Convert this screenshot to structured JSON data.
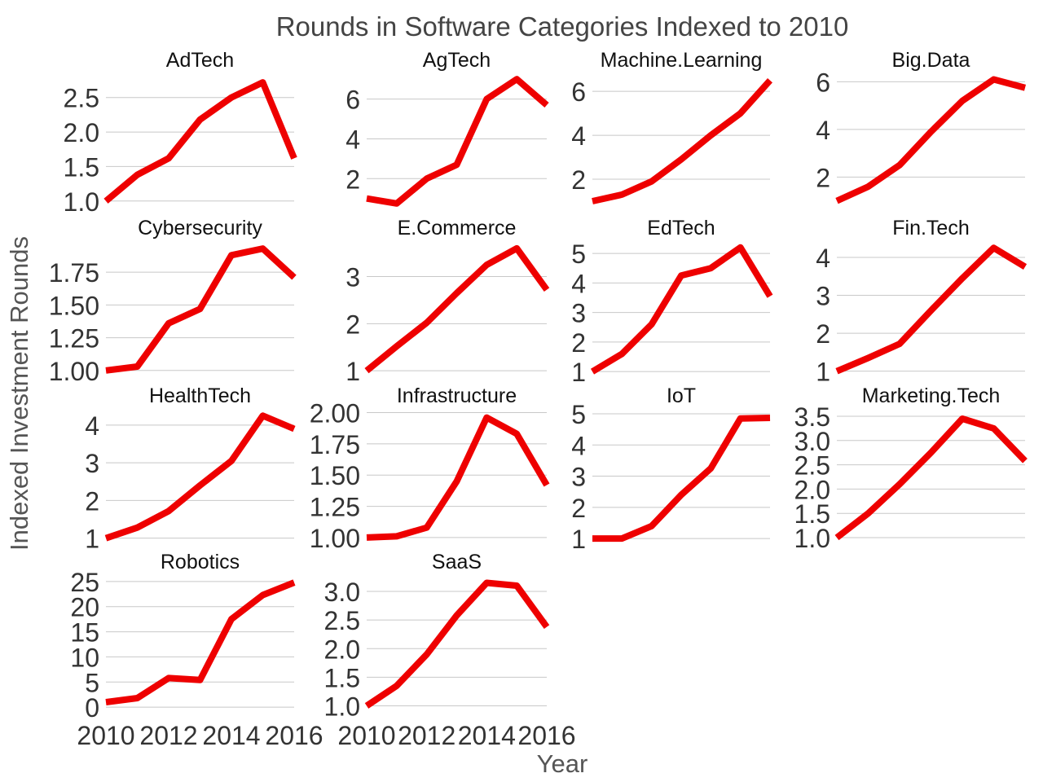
{
  "chart_data": {
    "type": "line",
    "title": "Rounds in Software Categories Indexed to 2010",
    "xlabel": "Year",
    "ylabel": "Indexed Investment Rounds",
    "x": [
      2010,
      2011,
      2012,
      2013,
      2014,
      2015,
      2016
    ],
    "x_ticks": [
      "2010",
      "2012",
      "2014",
      "2016"
    ],
    "line_color": "#ee0000",
    "grid": "horizontal",
    "panels": [
      {
        "name": "AdTech",
        "values": [
          1.0,
          1.38,
          1.62,
          2.18,
          2.5,
          2.72,
          1.62
        ],
        "ylim": [
          0.95,
          2.78
        ],
        "yticks": [
          1.0,
          1.5,
          2.0,
          2.5
        ],
        "yticks_text": [
          "1.0",
          "1.5",
          "2.0",
          "2.5"
        ]
      },
      {
        "name": "AgTech",
        "values": [
          1.0,
          0.75,
          2.0,
          2.7,
          6.0,
          7.0,
          5.7
        ],
        "ylim": [
          0.7,
          7.05
        ],
        "yticks": [
          2,
          4,
          6
        ],
        "yticks_text": [
          "2",
          "4",
          "6"
        ]
      },
      {
        "name": "Machine.Learning",
        "values": [
          1.0,
          1.3,
          1.9,
          2.9,
          4.0,
          5.0,
          6.5
        ],
        "ylim": [
          0.85,
          6.6
        ],
        "yticks": [
          2,
          4,
          6
        ],
        "yticks_text": [
          "2",
          "4",
          "6"
        ]
      },
      {
        "name": "Big.Data",
        "values": [
          1.0,
          1.6,
          2.5,
          3.9,
          5.2,
          6.1,
          5.75
        ],
        "ylim": [
          0.85,
          6.15
        ],
        "yticks": [
          2,
          4,
          6
        ],
        "yticks_text": [
          "2",
          "4",
          "6"
        ]
      },
      {
        "name": "Cybersecurity",
        "values": [
          1.0,
          1.03,
          1.36,
          1.47,
          1.88,
          1.93,
          1.71
        ],
        "ylim": [
          0.98,
          1.95
        ],
        "yticks": [
          1.0,
          1.25,
          1.5,
          1.75
        ],
        "yticks_text": [
          "1.00",
          "1.25",
          "1.50",
          "1.75"
        ]
      },
      {
        "name": "E.Commerce",
        "values": [
          1.0,
          1.52,
          2.02,
          2.65,
          3.25,
          3.6,
          2.72
        ],
        "ylim": [
          0.95,
          3.65
        ],
        "yticks": [
          1,
          2,
          3
        ],
        "yticks_text": [
          "1",
          "2",
          "3"
        ]
      },
      {
        "name": "EdTech",
        "values": [
          1.0,
          1.6,
          2.6,
          4.25,
          4.5,
          5.2,
          3.55
        ],
        "ylim": [
          0.95,
          5.25
        ],
        "yticks": [
          1,
          2,
          3,
          4,
          5
        ],
        "yticks_text": [
          "1",
          "2",
          "3",
          "4",
          "5"
        ]
      },
      {
        "name": "Fin.Tech",
        "values": [
          1.0,
          1.35,
          1.72,
          2.6,
          3.45,
          4.25,
          3.75
        ],
        "ylim": [
          0.95,
          4.3
        ],
        "yticks": [
          1,
          2,
          3,
          4
        ],
        "yticks_text": [
          "1",
          "2",
          "3",
          "4"
        ]
      },
      {
        "name": "HealthTech",
        "values": [
          1.0,
          1.28,
          1.72,
          2.4,
          3.05,
          4.25,
          3.9
        ],
        "ylim": [
          0.95,
          4.3
        ],
        "yticks": [
          1,
          2,
          3,
          4
        ],
        "yticks_text": [
          "1",
          "2",
          "3",
          "4"
        ]
      },
      {
        "name": "Infrastructure",
        "values": [
          1.0,
          1.01,
          1.08,
          1.45,
          1.96,
          1.83,
          1.42
        ],
        "ylim": [
          0.98,
          1.99
        ],
        "yticks": [
          1.0,
          1.25,
          1.5,
          1.75,
          2.0
        ],
        "yticks_text": [
          "1.00",
          "1.25",
          "1.50",
          "1.75",
          "2.00"
        ]
      },
      {
        "name": "IoT",
        "values": [
          1.0,
          1.0,
          1.4,
          2.4,
          3.25,
          4.85,
          4.87
        ],
        "ylim": [
          0.95,
          5.0
        ],
        "yticks": [
          1,
          2,
          3,
          4,
          5
        ],
        "yticks_text": [
          "1",
          "2",
          "3",
          "4",
          "5"
        ]
      },
      {
        "name": "Marketing.Tech",
        "values": [
          1.0,
          1.5,
          2.1,
          2.75,
          3.45,
          3.25,
          2.58
        ],
        "ylim": [
          0.95,
          3.55
        ],
        "yticks": [
          1.0,
          1.5,
          2.0,
          2.5,
          3.0,
          3.5
        ],
        "yticks_text": [
          "1.0",
          "1.5",
          "2.0",
          "2.5",
          "3.0",
          "3.5"
        ]
      },
      {
        "name": "Robotics",
        "values": [
          1.0,
          1.8,
          5.8,
          5.4,
          17.5,
          22.3,
          24.8
        ],
        "ylim": [
          -0.3,
          25.3
        ],
        "yticks": [
          0,
          5,
          10,
          15,
          20,
          25
        ],
        "yticks_text": [
          "0",
          "5",
          "10",
          "15",
          "20",
          "25"
        ]
      },
      {
        "name": "SaaS",
        "values": [
          1.0,
          1.35,
          1.9,
          2.58,
          3.15,
          3.1,
          2.38
        ],
        "ylim": [
          0.95,
          3.2
        ],
        "yticks": [
          1.0,
          1.5,
          2.0,
          2.5,
          3.0
        ],
        "yticks_text": [
          "1.0",
          "1.5",
          "2.0",
          "2.5",
          "3.0"
        ]
      }
    ]
  }
}
